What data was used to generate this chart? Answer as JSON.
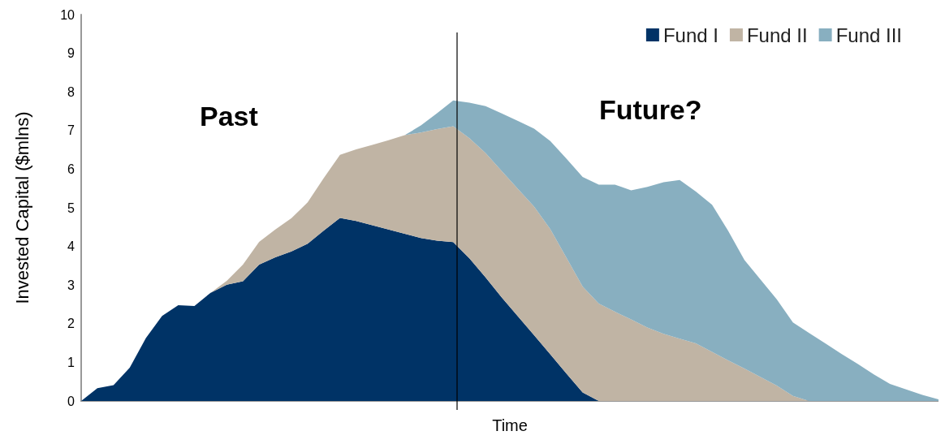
{
  "chart_data": {
    "type": "area",
    "stacked": true,
    "xlabel": "Time",
    "ylabel": "Invested Capital ($mlns)",
    "categories": [
      null,
      null,
      null,
      null,
      null,
      null,
      null,
      null,
      null,
      null,
      null,
      null,
      null,
      null,
      null,
      null,
      null,
      null,
      null,
      null,
      null,
      null,
      null,
      null,
      null,
      null,
      null,
      null,
      null,
      null,
      null,
      null,
      null,
      null,
      null,
      null,
      null,
      null,
      null,
      null,
      null,
      null,
      null,
      null,
      null,
      null,
      null,
      null,
      null,
      null,
      null,
      null,
      null,
      null
    ],
    "ylim": [
      0,
      10
    ],
    "yticks": [
      0,
      1,
      2,
      3,
      4,
      5,
      6,
      7,
      8,
      9,
      10
    ],
    "tick_labels": "y",
    "grid": false,
    "legend": "top right",
    "series": [
      {
        "name": "Fund I",
        "color": "#003366",
        "values": [
          0,
          0.33,
          0.41,
          0.86,
          1.63,
          2.2,
          2.48,
          2.46,
          2.8,
          3.01,
          3.1,
          3.53,
          3.72,
          3.87,
          4.07,
          4.41,
          4.74,
          4.66,
          4.55,
          4.44,
          4.33,
          4.22,
          4.15,
          4.11,
          3.69,
          3.2,
          2.68,
          2.19,
          1.7,
          1.21,
          0.71,
          0.22,
          0,
          0,
          0,
          0,
          0,
          0,
          0,
          0,
          0,
          0,
          0,
          0,
          0,
          0,
          0,
          0,
          0,
          0,
          0,
          0,
          0,
          0
        ]
      },
      {
        "name": "Fund II",
        "color": "#c0b4a4",
        "values": [
          0,
          0,
          0,
          0,
          0,
          0,
          0,
          0,
          0,
          0.1,
          0.43,
          0.59,
          0.72,
          0.86,
          1.07,
          1.36,
          1.63,
          1.85,
          2.08,
          2.31,
          2.55,
          2.73,
          2.89,
          3.0,
          3.11,
          3.22,
          3.27,
          3.3,
          3.33,
          3.24,
          3.0,
          2.74,
          2.52,
          2.31,
          2.11,
          1.9,
          1.74,
          1.61,
          1.49,
          1.27,
          1.05,
          0.84,
          0.62,
          0.4,
          0.13,
          0,
          0,
          0,
          0,
          0,
          0,
          0,
          0,
          0
        ]
      },
      {
        "name": "Fund III",
        "color": "#88afc0",
        "values": [
          0,
          0,
          0,
          0,
          0,
          0,
          0,
          0,
          0,
          0,
          0,
          0,
          0,
          0,
          0,
          0,
          0,
          0,
          0,
          0,
          0,
          0.18,
          0.41,
          0.67,
          0.92,
          1.21,
          1.49,
          1.76,
          2.02,
          2.28,
          2.56,
          2.84,
          3.08,
          3.29,
          3.34,
          3.64,
          3.92,
          4.11,
          3.93,
          3.81,
          3.35,
          2.81,
          2.52,
          2.23,
          1.9,
          1.76,
          1.49,
          1.22,
          0.96,
          0.69,
          0.44,
          0.3,
          0.16,
          0.04
        ]
      }
    ],
    "annotations": [
      "Past",
      "Future?"
    ]
  }
}
